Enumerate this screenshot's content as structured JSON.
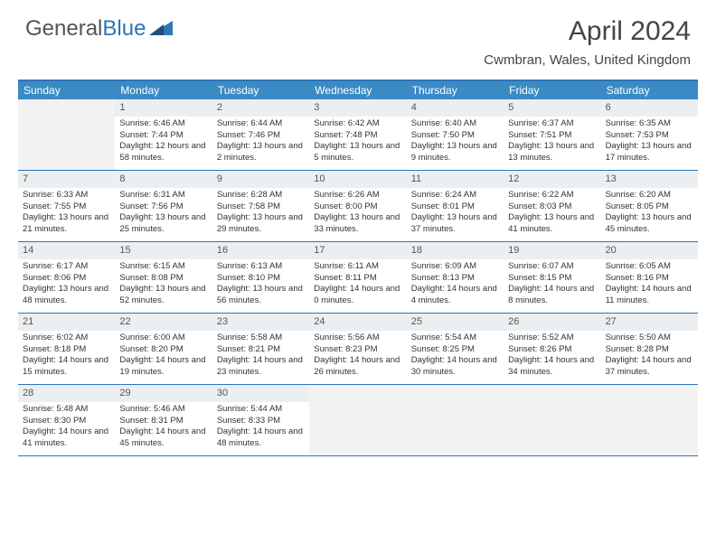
{
  "logo": {
    "text1": "General",
    "text2": "Blue"
  },
  "title": "April 2024",
  "location": "Cwmbran, Wales, United Kingdom",
  "colors": {
    "accent": "#2e75b6",
    "header_bg": "#3b8ac4",
    "daynum_bg": "#eceff1",
    "empty_bg": "#f2f2f2"
  },
  "dow": [
    "Sunday",
    "Monday",
    "Tuesday",
    "Wednesday",
    "Thursday",
    "Friday",
    "Saturday"
  ],
  "weeks": [
    [
      null,
      {
        "n": "1",
        "sr": "Sunrise: 6:46 AM",
        "ss": "Sunset: 7:44 PM",
        "dl": "Daylight: 12 hours and 58 minutes."
      },
      {
        "n": "2",
        "sr": "Sunrise: 6:44 AM",
        "ss": "Sunset: 7:46 PM",
        "dl": "Daylight: 13 hours and 2 minutes."
      },
      {
        "n": "3",
        "sr": "Sunrise: 6:42 AM",
        "ss": "Sunset: 7:48 PM",
        "dl": "Daylight: 13 hours and 5 minutes."
      },
      {
        "n": "4",
        "sr": "Sunrise: 6:40 AM",
        "ss": "Sunset: 7:50 PM",
        "dl": "Daylight: 13 hours and 9 minutes."
      },
      {
        "n": "5",
        "sr": "Sunrise: 6:37 AM",
        "ss": "Sunset: 7:51 PM",
        "dl": "Daylight: 13 hours and 13 minutes."
      },
      {
        "n": "6",
        "sr": "Sunrise: 6:35 AM",
        "ss": "Sunset: 7:53 PM",
        "dl": "Daylight: 13 hours and 17 minutes."
      }
    ],
    [
      {
        "n": "7",
        "sr": "Sunrise: 6:33 AM",
        "ss": "Sunset: 7:55 PM",
        "dl": "Daylight: 13 hours and 21 minutes."
      },
      {
        "n": "8",
        "sr": "Sunrise: 6:31 AM",
        "ss": "Sunset: 7:56 PM",
        "dl": "Daylight: 13 hours and 25 minutes."
      },
      {
        "n": "9",
        "sr": "Sunrise: 6:28 AM",
        "ss": "Sunset: 7:58 PM",
        "dl": "Daylight: 13 hours and 29 minutes."
      },
      {
        "n": "10",
        "sr": "Sunrise: 6:26 AM",
        "ss": "Sunset: 8:00 PM",
        "dl": "Daylight: 13 hours and 33 minutes."
      },
      {
        "n": "11",
        "sr": "Sunrise: 6:24 AM",
        "ss": "Sunset: 8:01 PM",
        "dl": "Daylight: 13 hours and 37 minutes."
      },
      {
        "n": "12",
        "sr": "Sunrise: 6:22 AM",
        "ss": "Sunset: 8:03 PM",
        "dl": "Daylight: 13 hours and 41 minutes."
      },
      {
        "n": "13",
        "sr": "Sunrise: 6:20 AM",
        "ss": "Sunset: 8:05 PM",
        "dl": "Daylight: 13 hours and 45 minutes."
      }
    ],
    [
      {
        "n": "14",
        "sr": "Sunrise: 6:17 AM",
        "ss": "Sunset: 8:06 PM",
        "dl": "Daylight: 13 hours and 48 minutes."
      },
      {
        "n": "15",
        "sr": "Sunrise: 6:15 AM",
        "ss": "Sunset: 8:08 PM",
        "dl": "Daylight: 13 hours and 52 minutes."
      },
      {
        "n": "16",
        "sr": "Sunrise: 6:13 AM",
        "ss": "Sunset: 8:10 PM",
        "dl": "Daylight: 13 hours and 56 minutes."
      },
      {
        "n": "17",
        "sr": "Sunrise: 6:11 AM",
        "ss": "Sunset: 8:11 PM",
        "dl": "Daylight: 14 hours and 0 minutes."
      },
      {
        "n": "18",
        "sr": "Sunrise: 6:09 AM",
        "ss": "Sunset: 8:13 PM",
        "dl": "Daylight: 14 hours and 4 minutes."
      },
      {
        "n": "19",
        "sr": "Sunrise: 6:07 AM",
        "ss": "Sunset: 8:15 PM",
        "dl": "Daylight: 14 hours and 8 minutes."
      },
      {
        "n": "20",
        "sr": "Sunrise: 6:05 AM",
        "ss": "Sunset: 8:16 PM",
        "dl": "Daylight: 14 hours and 11 minutes."
      }
    ],
    [
      {
        "n": "21",
        "sr": "Sunrise: 6:02 AM",
        "ss": "Sunset: 8:18 PM",
        "dl": "Daylight: 14 hours and 15 minutes."
      },
      {
        "n": "22",
        "sr": "Sunrise: 6:00 AM",
        "ss": "Sunset: 8:20 PM",
        "dl": "Daylight: 14 hours and 19 minutes."
      },
      {
        "n": "23",
        "sr": "Sunrise: 5:58 AM",
        "ss": "Sunset: 8:21 PM",
        "dl": "Daylight: 14 hours and 23 minutes."
      },
      {
        "n": "24",
        "sr": "Sunrise: 5:56 AM",
        "ss": "Sunset: 8:23 PM",
        "dl": "Daylight: 14 hours and 26 minutes."
      },
      {
        "n": "25",
        "sr": "Sunrise: 5:54 AM",
        "ss": "Sunset: 8:25 PM",
        "dl": "Daylight: 14 hours and 30 minutes."
      },
      {
        "n": "26",
        "sr": "Sunrise: 5:52 AM",
        "ss": "Sunset: 8:26 PM",
        "dl": "Daylight: 14 hours and 34 minutes."
      },
      {
        "n": "27",
        "sr": "Sunrise: 5:50 AM",
        "ss": "Sunset: 8:28 PM",
        "dl": "Daylight: 14 hours and 37 minutes."
      }
    ],
    [
      {
        "n": "28",
        "sr": "Sunrise: 5:48 AM",
        "ss": "Sunset: 8:30 PM",
        "dl": "Daylight: 14 hours and 41 minutes."
      },
      {
        "n": "29",
        "sr": "Sunrise: 5:46 AM",
        "ss": "Sunset: 8:31 PM",
        "dl": "Daylight: 14 hours and 45 minutes."
      },
      {
        "n": "30",
        "sr": "Sunrise: 5:44 AM",
        "ss": "Sunset: 8:33 PM",
        "dl": "Daylight: 14 hours and 48 minutes."
      },
      null,
      null,
      null,
      null
    ]
  ]
}
